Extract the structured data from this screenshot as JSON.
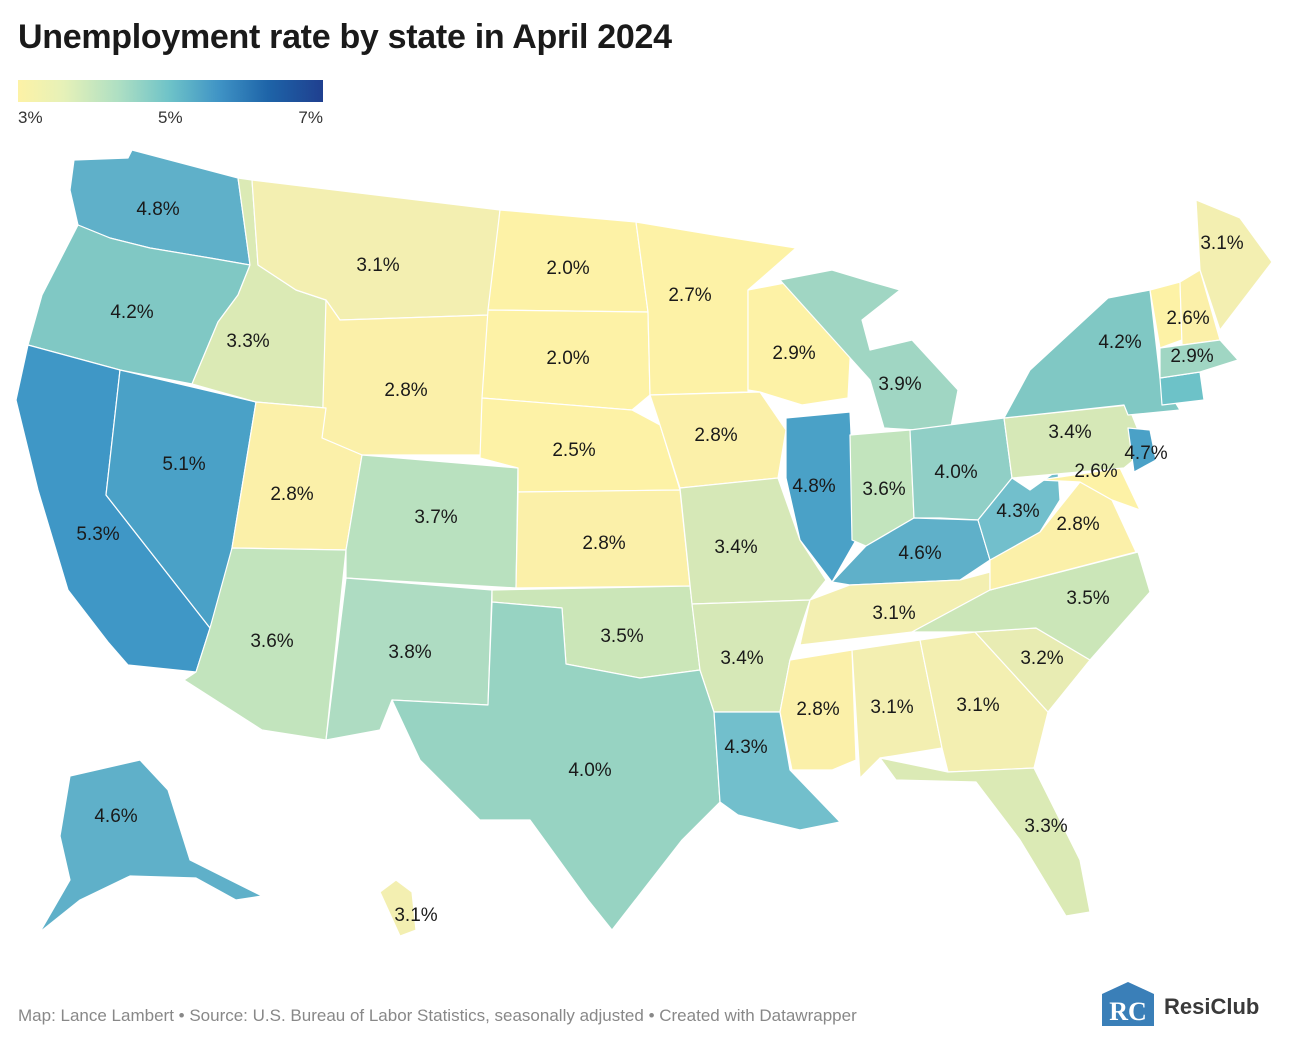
{
  "title": "Unemployment rate by state in April 2024",
  "legend": {
    "min_label": "3%",
    "mid_label": "5%",
    "max_label": "7%",
    "colors": [
      "#fdf2a6",
      "#e6f1b8",
      "#aedfc3",
      "#6dc2c8",
      "#3f93c5",
      "#1e64a8",
      "#1f3f8f"
    ]
  },
  "states": [
    {
      "id": "WA",
      "value": "4.8%"
    },
    {
      "id": "OR",
      "value": "4.2%"
    },
    {
      "id": "CA",
      "value": "5.3%"
    },
    {
      "id": "NV",
      "value": "5.1%"
    },
    {
      "id": "ID",
      "value": "3.3%"
    },
    {
      "id": "MT",
      "value": "3.1%"
    },
    {
      "id": "WY",
      "value": "2.8%"
    },
    {
      "id": "UT",
      "value": "2.8%"
    },
    {
      "id": "AZ",
      "value": "3.6%"
    },
    {
      "id": "CO",
      "value": "3.7%"
    },
    {
      "id": "NM",
      "value": "3.8%"
    },
    {
      "id": "ND",
      "value": "2.0%"
    },
    {
      "id": "SD",
      "value": "2.0%"
    },
    {
      "id": "NE",
      "value": "2.5%"
    },
    {
      "id": "KS",
      "value": "2.8%"
    },
    {
      "id": "OK",
      "value": "3.5%"
    },
    {
      "id": "TX",
      "value": "4.0%"
    },
    {
      "id": "MN",
      "value": "2.7%"
    },
    {
      "id": "IA",
      "value": "2.8%"
    },
    {
      "id": "MO",
      "value": "3.4%"
    },
    {
      "id": "AR",
      "value": "3.4%"
    },
    {
      "id": "LA",
      "value": "4.3%"
    },
    {
      "id": "WI",
      "value": "2.9%"
    },
    {
      "id": "IL",
      "value": "4.8%"
    },
    {
      "id": "MI",
      "value": "3.9%"
    },
    {
      "id": "IN",
      "value": "3.6%"
    },
    {
      "id": "OH",
      "value": "4.0%"
    },
    {
      "id": "KY",
      "value": "4.6%"
    },
    {
      "id": "TN",
      "value": "3.1%"
    },
    {
      "id": "MS",
      "value": "2.8%"
    },
    {
      "id": "AL",
      "value": "3.1%"
    },
    {
      "id": "GA",
      "value": "3.1%"
    },
    {
      "id": "FL",
      "value": "3.3%"
    },
    {
      "id": "SC",
      "value": "3.2%"
    },
    {
      "id": "NC",
      "value": "3.5%"
    },
    {
      "id": "VA",
      "value": "2.8%"
    },
    {
      "id": "WV",
      "value": "4.3%"
    },
    {
      "id": "MD",
      "value": "2.6%"
    },
    {
      "id": "PA",
      "value": "3.4%"
    },
    {
      "id": "NJ",
      "value": "4.7%"
    },
    {
      "id": "NY",
      "value": "4.2%"
    },
    {
      "id": "VT",
      "value": "2.6%"
    },
    {
      "id": "NH",
      "value": "2.9%"
    },
    {
      "id": "ME",
      "value": "3.1%"
    },
    {
      "id": "AK",
      "value": "4.6%"
    },
    {
      "id": "HI",
      "value": "3.1%"
    }
  ],
  "footer": "Map: Lance Lambert • Source: U.S. Bureau of Labor Statistics, seasonally adjusted • Created with Datawrapper",
  "logo": {
    "mark": "RC",
    "name": "ResiClub",
    "color": "#3a7fb8"
  }
}
